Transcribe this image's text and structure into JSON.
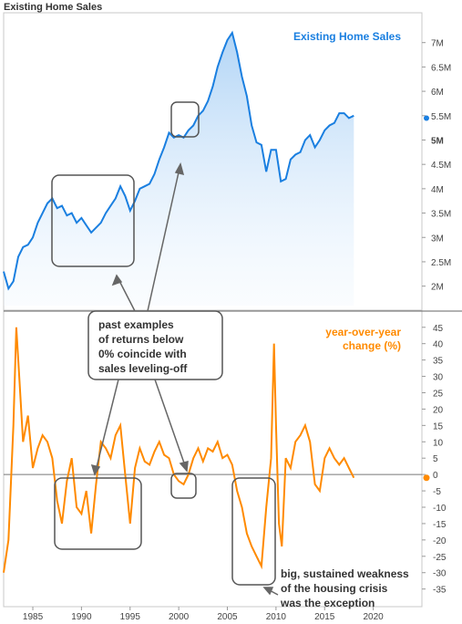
{
  "page": {
    "title": "Existing Home Sales"
  },
  "chart_data": [
    {
      "type": "area",
      "title": "Existing Home Sales",
      "color": "#1a7fe0",
      "xlim": [
        1982,
        2025
      ],
      "ylim": [
        1.6,
        7.5
      ],
      "x_ticks": [
        {
          "value": 1985,
          "label": "1985"
        },
        {
          "value": 1990,
          "label": "1990"
        },
        {
          "value": 1995,
          "label": "1995"
        },
        {
          "value": 2000,
          "label": "2000"
        },
        {
          "value": 2005,
          "label": "2005"
        },
        {
          "value": 2010,
          "label": "2010"
        },
        {
          "value": 2015,
          "label": "2015"
        },
        {
          "value": 2020,
          "label": "2020"
        }
      ],
      "y_ticks": [
        {
          "value": 7,
          "label": "7M"
        },
        {
          "value": 6.5,
          "label": "6.5M"
        },
        {
          "value": 6,
          "label": "6M"
        },
        {
          "value": 5.5,
          "label": "5.5M"
        },
        {
          "value": 5,
          "label": "5M"
        },
        {
          "value": 4.5,
          "label": "4.5M"
        },
        {
          "value": 4,
          "label": "4M"
        },
        {
          "value": 3.5,
          "label": "3.5M"
        },
        {
          "value": 3,
          "label": "3M"
        },
        {
          "value": 2.5,
          "label": "2.5M"
        },
        {
          "value": 2,
          "label": "2M"
        }
      ],
      "last_value": 5.45,
      "series": [
        {
          "x": [
            1982.0,
            1982.5,
            1983.0,
            1983.5,
            1984.0,
            1984.5,
            1985.0,
            1985.5,
            1986.0,
            1986.5,
            1987.0,
            1987.5,
            1988.0,
            1988.5,
            1989.0,
            1989.5,
            1990.0,
            1990.5,
            1991.0,
            1991.5,
            1992.0,
            1992.5,
            1993.0,
            1993.5,
            1994.0,
            1994.5,
            1995.0,
            1995.5,
            1996.0,
            1996.5,
            1997.0,
            1997.5,
            1998.0,
            1998.5,
            1999.0,
            1999.5,
            2000.0,
            2000.5,
            2001.0,
            2001.5,
            2002.0,
            2002.5,
            2003.0,
            2003.5,
            2004.0,
            2004.5,
            2005.0,
            2005.5,
            2006.0,
            2006.5,
            2007.0,
            2007.5,
            2008.0,
            2008.5,
            2009.0,
            2009.5,
            2010.0,
            2010.5,
            2011.0,
            2011.5,
            2012.0,
            2012.5,
            2013.0,
            2013.5,
            2014.0,
            2014.5,
            2015.0,
            2015.5,
            2016.0,
            2016.5,
            2017.0,
            2017.5,
            2018.0
          ],
          "y": [
            2.3,
            1.95,
            2.1,
            2.6,
            2.8,
            2.85,
            3.0,
            3.3,
            3.5,
            3.7,
            3.8,
            3.6,
            3.65,
            3.45,
            3.5,
            3.3,
            3.4,
            3.25,
            3.1,
            3.2,
            3.3,
            3.5,
            3.65,
            3.8,
            4.05,
            3.85,
            3.55,
            3.75,
            4.0,
            4.05,
            4.1,
            4.3,
            4.6,
            4.85,
            5.15,
            5.05,
            5.1,
            5.05,
            5.2,
            5.3,
            5.5,
            5.6,
            5.8,
            6.1,
            6.5,
            6.8,
            7.05,
            7.2,
            6.8,
            6.3,
            5.9,
            5.3,
            4.95,
            4.9,
            4.35,
            4.8,
            4.8,
            4.15,
            4.2,
            4.6,
            4.7,
            4.75,
            5.0,
            5.1,
            4.85,
            5.0,
            5.2,
            5.3,
            5.35,
            5.55,
            5.55,
            5.45,
            5.5
          ]
        }
      ]
    },
    {
      "type": "line",
      "title": "year-over-year change (%)",
      "color": "#ff8a00",
      "xlim": [
        1982,
        2025
      ],
      "ylim": [
        -39,
        48
      ],
      "y_ticks": [
        {
          "value": 45,
          "label": "45"
        },
        {
          "value": 40,
          "label": "40"
        },
        {
          "value": 35,
          "label": "35"
        },
        {
          "value": 30,
          "label": "30"
        },
        {
          "value": 25,
          "label": "25"
        },
        {
          "value": 20,
          "label": "20"
        },
        {
          "value": 15,
          "label": "15"
        },
        {
          "value": 10,
          "label": "10"
        },
        {
          "value": 5,
          "label": "5"
        },
        {
          "value": 0,
          "label": "0"
        },
        {
          "value": -5,
          "label": "-5"
        },
        {
          "value": -10,
          "label": "-10"
        },
        {
          "value": -15,
          "label": "-15"
        },
        {
          "value": -20,
          "label": "-20"
        },
        {
          "value": -25,
          "label": "-25"
        },
        {
          "value": -30,
          "label": "-30"
        },
        {
          "value": -35,
          "label": "-35"
        }
      ],
      "zero_line": 0,
      "last_value": -1,
      "series": [
        {
          "x": [
            1982.0,
            1982.5,
            1983.0,
            1983.3,
            1983.6,
            1984.0,
            1984.5,
            1985.0,
            1985.5,
            1986.0,
            1986.5,
            1987.0,
            1987.5,
            1988.0,
            1988.5,
            1989.0,
            1989.5,
            1990.0,
            1990.5,
            1991.0,
            1991.5,
            1992.0,
            1992.5,
            1993.0,
            1993.5,
            1994.0,
            1994.5,
            1995.0,
            1995.5,
            1996.0,
            1996.5,
            1997.0,
            1997.5,
            1998.0,
            1998.5,
            1999.0,
            1999.5,
            2000.0,
            2000.5,
            2001.0,
            2001.5,
            2002.0,
            2002.5,
            2003.0,
            2003.5,
            2004.0,
            2004.5,
            2005.0,
            2005.5,
            2006.0,
            2006.5,
            2007.0,
            2007.5,
            2008.0,
            2008.5,
            2009.0,
            2009.5,
            2009.8,
            2010.0,
            2010.3,
            2010.6,
            2011.0,
            2011.5,
            2012.0,
            2012.5,
            2013.0,
            2013.5,
            2014.0,
            2014.5,
            2015.0,
            2015.5,
            2016.0,
            2016.5,
            2017.0,
            2017.5,
            2018.0
          ],
          "y": [
            -30,
            -20,
            15,
            45,
            30,
            10,
            18,
            2,
            8,
            12,
            10,
            5,
            -8,
            -15,
            -2,
            5,
            -10,
            -12,
            -5,
            -18,
            -3,
            10,
            8,
            5,
            12,
            15,
            0,
            -15,
            2,
            8,
            4,
            3,
            7,
            10,
            6,
            5,
            0,
            -2,
            -3,
            0,
            5,
            8,
            4,
            8,
            7,
            10,
            5,
            6,
            3,
            -5,
            -10,
            -18,
            -22,
            -25,
            -28,
            -10,
            5,
            40,
            15,
            -15,
            -22,
            5,
            2,
            10,
            12,
            15,
            10,
            -3,
            -5,
            5,
            8,
            5,
            3,
            5,
            2,
            -1
          ]
        }
      ]
    }
  ],
  "annotations": {
    "examples_label": [
      "past examples",
      "of returns below",
      "0% coincide with",
      "sales leveling-off"
    ],
    "crisis_label": [
      "big, sustained weakness",
      "of the housing crisis",
      "was the exception"
    ]
  }
}
